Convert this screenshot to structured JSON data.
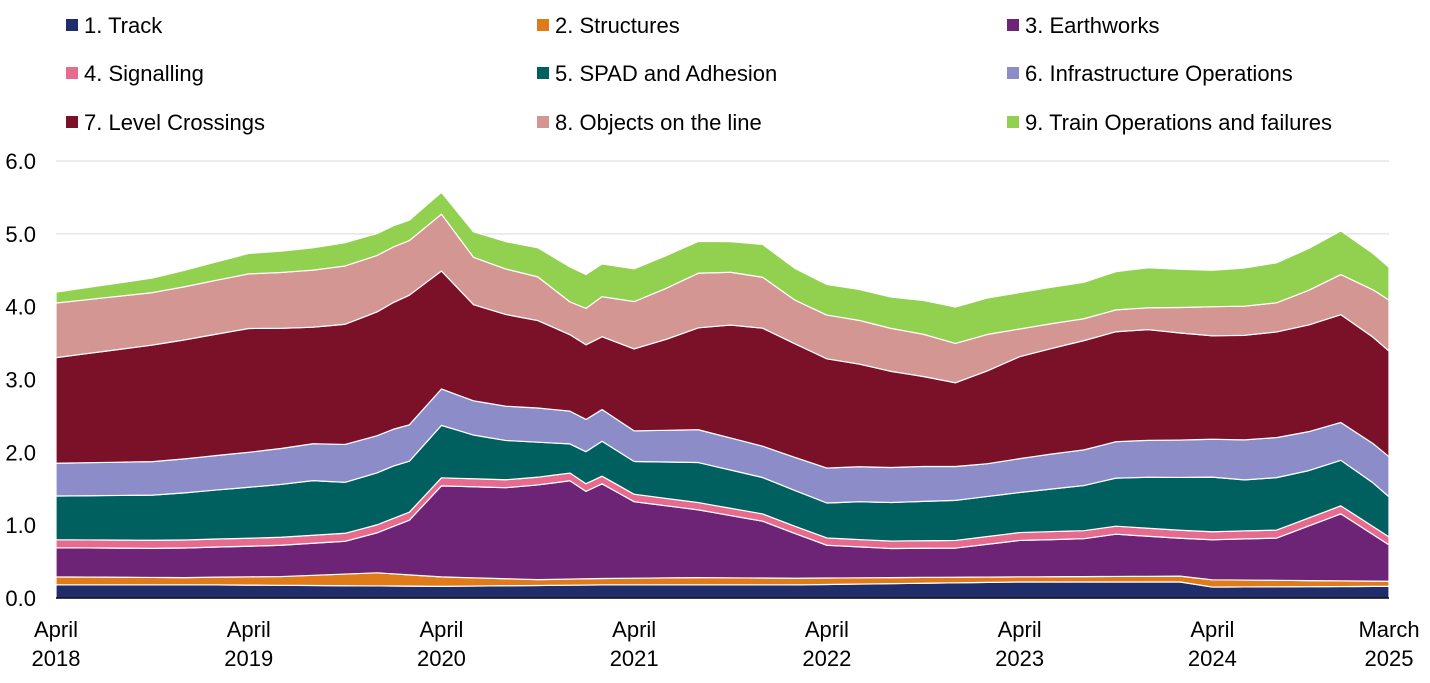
{
  "chart_data": {
    "type": "area",
    "stacked": true,
    "x_start": "2018-04",
    "x_end": "2025-03",
    "x_ticks": [
      {
        "date": "2018-04",
        "line1": "April",
        "line2": "2018"
      },
      {
        "date": "2019-04",
        "line1": "April",
        "line2": "2019"
      },
      {
        "date": "2020-04",
        "line1": "April",
        "line2": "2020"
      },
      {
        "date": "2021-04",
        "line1": "April",
        "line2": "2021"
      },
      {
        "date": "2022-04",
        "line1": "April",
        "line2": "2022"
      },
      {
        "date": "2023-04",
        "line1": "April",
        "line2": "2023"
      },
      {
        "date": "2024-04",
        "line1": "April",
        "line2": "2024"
      },
      {
        "date": "2025-03",
        "line1": "March",
        "line2": "2025"
      }
    ],
    "ylim": [
      0,
      6
    ],
    "y_ticks": [
      "0.0",
      "1.0",
      "2.0",
      "3.0",
      "4.0",
      "5.0",
      "6.0"
    ],
    "grid": "horizontal",
    "legend_position": "top",
    "series": [
      {
        "name": "1. Track",
        "color": "#1f2d6b",
        "anchors": [
          [
            0,
            0.18
          ],
          [
            10,
            0.18
          ],
          [
            24,
            0.16
          ],
          [
            34,
            0.18
          ],
          [
            46,
            0.18
          ],
          [
            60,
            0.22
          ],
          [
            70,
            0.22
          ],
          [
            72,
            0.15
          ],
          [
            83,
            0.16
          ]
        ]
      },
      {
        "name": "2. Structures",
        "color": "#e07b19",
        "anchors": [
          [
            0,
            0.11
          ],
          [
            8,
            0.1
          ],
          [
            14,
            0.12
          ],
          [
            20,
            0.18
          ],
          [
            24,
            0.13
          ],
          [
            30,
            0.08
          ],
          [
            40,
            0.1
          ],
          [
            54,
            0.08
          ],
          [
            60,
            0.07
          ],
          [
            70,
            0.08
          ],
          [
            72,
            0.1
          ],
          [
            83,
            0.07
          ]
        ]
      },
      {
        "name": "3. Earthworks",
        "color": "#6d2476",
        "anchors": [
          [
            0,
            0.4
          ],
          [
            6,
            0.4
          ],
          [
            12,
            0.42
          ],
          [
            18,
            0.45
          ],
          [
            20,
            0.55
          ],
          [
            22,
            0.75
          ],
          [
            24,
            1.25
          ],
          [
            28,
            1.25
          ],
          [
            32,
            1.35
          ],
          [
            33,
            1.2
          ],
          [
            34,
            1.3
          ],
          [
            36,
            1.05
          ],
          [
            40,
            0.93
          ],
          [
            44,
            0.78
          ],
          [
            48,
            0.45
          ],
          [
            52,
            0.4
          ],
          [
            56,
            0.4
          ],
          [
            60,
            0.5
          ],
          [
            64,
            0.52
          ],
          [
            66,
            0.58
          ],
          [
            70,
            0.52
          ],
          [
            72,
            0.55
          ],
          [
            76,
            0.58
          ],
          [
            80,
            0.92
          ],
          [
            84,
            0.98
          ],
          [
            83,
            0.5
          ]
        ]
      },
      {
        "name": "4. Signalling",
        "color": "#e66b8f",
        "anchors": [
          [
            0,
            0.11
          ],
          [
            16,
            0.11
          ],
          [
            26,
            0.11
          ],
          [
            40,
            0.1
          ],
          [
            50,
            0.1
          ],
          [
            62,
            0.11
          ],
          [
            70,
            0.11
          ],
          [
            80,
            0.11
          ],
          [
            83,
            0.11
          ]
        ]
      },
      {
        "name": "5. SPAD and Adhesion",
        "color": "#006060",
        "anchors": [
          [
            0,
            0.6
          ],
          [
            6,
            0.62
          ],
          [
            12,
            0.7
          ],
          [
            16,
            0.75
          ],
          [
            18,
            0.7
          ],
          [
            21,
            0.72
          ],
          [
            22,
            0.7
          ],
          [
            24,
            0.72
          ],
          [
            26,
            0.6
          ],
          [
            30,
            0.48
          ],
          [
            32,
            0.4
          ],
          [
            34,
            0.48
          ],
          [
            36,
            0.45
          ],
          [
            40,
            0.55
          ],
          [
            44,
            0.5
          ],
          [
            48,
            0.48
          ],
          [
            50,
            0.52
          ],
          [
            56,
            0.55
          ],
          [
            60,
            0.55
          ],
          [
            64,
            0.62
          ],
          [
            68,
            0.7
          ],
          [
            72,
            0.75
          ],
          [
            74,
            0.7
          ],
          [
            76,
            0.72
          ],
          [
            78,
            0.65
          ],
          [
            82,
            0.6
          ],
          [
            83,
            0.55
          ]
        ]
      },
      {
        "name": "6. Infrastructure Operations",
        "color": "#8c8cc9",
        "anchors": [
          [
            0,
            0.45
          ],
          [
            6,
            0.46
          ],
          [
            12,
            0.48
          ],
          [
            18,
            0.52
          ],
          [
            22,
            0.5
          ],
          [
            24,
            0.5
          ],
          [
            26,
            0.47
          ],
          [
            30,
            0.47
          ],
          [
            32,
            0.45
          ],
          [
            36,
            0.42
          ],
          [
            40,
            0.45
          ],
          [
            44,
            0.43
          ],
          [
            48,
            0.48
          ],
          [
            54,
            0.48
          ],
          [
            58,
            0.45
          ],
          [
            62,
            0.48
          ],
          [
            66,
            0.5
          ],
          [
            72,
            0.52
          ],
          [
            74,
            0.55
          ],
          [
            76,
            0.55
          ],
          [
            80,
            0.52
          ],
          [
            83,
            0.55
          ]
        ]
      },
      {
        "name": "7. Level Crossings",
        "color": "#7b1029",
        "anchors": [
          [
            0,
            1.45
          ],
          [
            6,
            1.6
          ],
          [
            12,
            1.7
          ],
          [
            16,
            1.6
          ],
          [
            20,
            1.7
          ],
          [
            22,
            1.78
          ],
          [
            24,
            1.62
          ],
          [
            26,
            1.32
          ],
          [
            30,
            1.2
          ],
          [
            32,
            1.05
          ],
          [
            34,
            1.0
          ],
          [
            38,
            1.25
          ],
          [
            42,
            1.55
          ],
          [
            44,
            1.62
          ],
          [
            48,
            1.5
          ],
          [
            52,
            1.32
          ],
          [
            56,
            1.15
          ],
          [
            60,
            1.4
          ],
          [
            64,
            1.5
          ],
          [
            68,
            1.52
          ],
          [
            72,
            1.42
          ],
          [
            76,
            1.45
          ],
          [
            80,
            1.48
          ],
          [
            83,
            1.45
          ]
        ]
      },
      {
        "name": "8. Objects on the line",
        "color": "#d39692",
        "anchors": [
          [
            0,
            0.75
          ],
          [
            6,
            0.72
          ],
          [
            12,
            0.75
          ],
          [
            18,
            0.8
          ],
          [
            22,
            0.75
          ],
          [
            24,
            0.78
          ],
          [
            26,
            0.65
          ],
          [
            30,
            0.6
          ],
          [
            32,
            0.45
          ],
          [
            34,
            0.55
          ],
          [
            36,
            0.65
          ],
          [
            40,
            0.75
          ],
          [
            44,
            0.7
          ],
          [
            46,
            0.6
          ],
          [
            50,
            0.6
          ],
          [
            54,
            0.58
          ],
          [
            58,
            0.5
          ],
          [
            60,
            0.38
          ],
          [
            64,
            0.3
          ],
          [
            68,
            0.3
          ],
          [
            72,
            0.4
          ],
          [
            76,
            0.4
          ],
          [
            80,
            0.55
          ],
          [
            83,
            0.7
          ]
        ]
      },
      {
        "name": "9. Train Operations and failures",
        "color": "#92d050",
        "anchors": [
          [
            0,
            0.15
          ],
          [
            6,
            0.2
          ],
          [
            12,
            0.28
          ],
          [
            18,
            0.32
          ],
          [
            22,
            0.28
          ],
          [
            24,
            0.3
          ],
          [
            26,
            0.35
          ],
          [
            30,
            0.4
          ],
          [
            32,
            0.48
          ],
          [
            34,
            0.45
          ],
          [
            38,
            0.45
          ],
          [
            42,
            0.42
          ],
          [
            44,
            0.45
          ],
          [
            48,
            0.42
          ],
          [
            52,
            0.43
          ],
          [
            56,
            0.5
          ],
          [
            60,
            0.5
          ],
          [
            64,
            0.5
          ],
          [
            68,
            0.55
          ],
          [
            72,
            0.5
          ],
          [
            76,
            0.55
          ],
          [
            80,
            0.6
          ],
          [
            83,
            0.45
          ]
        ]
      }
    ]
  }
}
